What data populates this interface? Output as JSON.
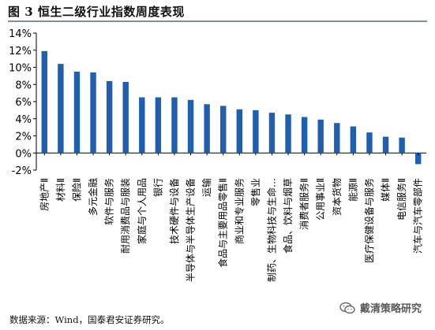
{
  "header": {
    "title": "图 3 恒生二级行业指数周度表现"
  },
  "footer": {
    "source": "数据来源：Wind，国泰君安证券研究。"
  },
  "watermark": {
    "text": "戴清策略研究"
  },
  "colors": {
    "bar": "#1f5fae",
    "axis": "#000000"
  },
  "chart_data": {
    "type": "bar",
    "title": "",
    "xlabel": "",
    "ylabel": "",
    "ylim": [
      -2,
      14
    ],
    "yticks": [
      -2,
      0,
      2,
      4,
      6,
      8,
      10,
      12,
      14
    ],
    "ytick_labels": [
      "-2%",
      "0%",
      "2%",
      "4%",
      "6%",
      "8%",
      "10%",
      "12%",
      "14%"
    ],
    "grid": false,
    "legend": "none",
    "categories": [
      "房地产Ⅱ",
      "材料Ⅱ",
      "保险Ⅱ",
      "多元金融",
      "软件与服务",
      "耐用消费品与服装",
      "家庭与个人用品",
      "银行",
      "技术硬件与设备",
      "半导体与半导体生产设备",
      "运输",
      "食品与主要用品零售Ⅱ",
      "商业和专业服务",
      "零售业",
      "制药、生物科技与生命…",
      "食品、饮料与烟草",
      "消费者服务Ⅱ",
      "公用事业Ⅱ",
      "资本货物",
      "能源Ⅱ",
      "医疗保健设备与服务",
      "媒体Ⅱ",
      "电信服务Ⅱ",
      "汽车与汽车零部件"
    ],
    "values": [
      11.9,
      10.4,
      9.5,
      9.4,
      8.4,
      8.3,
      6.5,
      6.5,
      6.5,
      6.2,
      5.7,
      5.5,
      5.1,
      5.0,
      4.7,
      4.5,
      4.2,
      3.9,
      3.5,
      3.1,
      2.4,
      1.9,
      1.8,
      -1.3
    ]
  }
}
